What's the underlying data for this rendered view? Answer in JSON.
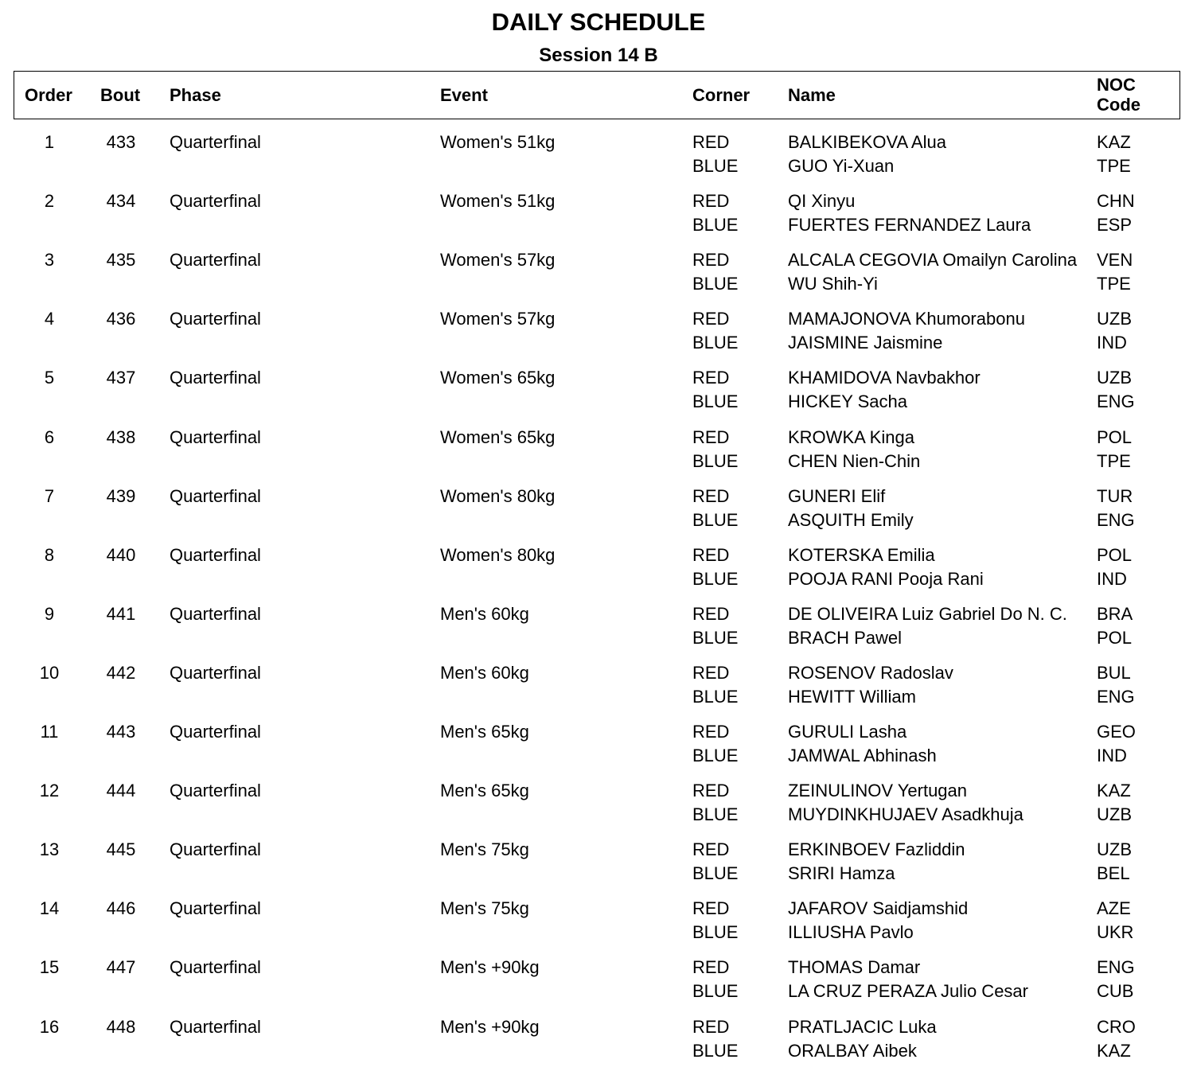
{
  "title": "DAILY SCHEDULE",
  "subtitle": "Session 14 B",
  "headers": {
    "order": "Order",
    "bout": "Bout",
    "phase": "Phase",
    "event": "Event",
    "corner": "Corner",
    "name": "Name",
    "noc_line1": "NOC",
    "noc_line2": "Code"
  },
  "rows": [
    {
      "order": "1",
      "bout": "433",
      "phase": "Quarterfinal",
      "event": "Women's 51kg",
      "red": {
        "corner": "RED",
        "name": "BALKIBEKOVA Alua",
        "noc": "KAZ"
      },
      "blue": {
        "corner": "BLUE",
        "name": "GUO Yi-Xuan",
        "noc": "TPE"
      }
    },
    {
      "order": "2",
      "bout": "434",
      "phase": "Quarterfinal",
      "event": "Women's 51kg",
      "red": {
        "corner": "RED",
        "name": "QI Xinyu",
        "noc": "CHN"
      },
      "blue": {
        "corner": "BLUE",
        "name": "FUERTES FERNANDEZ Laura",
        "noc": "ESP"
      }
    },
    {
      "order": "3",
      "bout": "435",
      "phase": "Quarterfinal",
      "event": "Women's 57kg",
      "red": {
        "corner": "RED",
        "name": "ALCALA CEGOVIA Omailyn Carolina",
        "noc": "VEN"
      },
      "blue": {
        "corner": "BLUE",
        "name": "WU Shih-Yi",
        "noc": "TPE"
      }
    },
    {
      "order": "4",
      "bout": "436",
      "phase": "Quarterfinal",
      "event": "Women's 57kg",
      "red": {
        "corner": "RED",
        "name": "MAMAJONOVA Khumorabonu",
        "noc": "UZB"
      },
      "blue": {
        "corner": "BLUE",
        "name": "JAISMINE Jaismine",
        "noc": "IND"
      }
    },
    {
      "order": "5",
      "bout": "437",
      "phase": "Quarterfinal",
      "event": "Women's 65kg",
      "red": {
        "corner": "RED",
        "name": "KHAMIDOVA Navbakhor",
        "noc": "UZB"
      },
      "blue": {
        "corner": "BLUE",
        "name": "HICKEY Sacha",
        "noc": "ENG"
      }
    },
    {
      "order": "6",
      "bout": "438",
      "phase": "Quarterfinal",
      "event": "Women's 65kg",
      "red": {
        "corner": "RED",
        "name": "KROWKA Kinga",
        "noc": "POL"
      },
      "blue": {
        "corner": "BLUE",
        "name": "CHEN Nien-Chin",
        "noc": "TPE"
      }
    },
    {
      "order": "7",
      "bout": "439",
      "phase": "Quarterfinal",
      "event": "Women's 80kg",
      "red": {
        "corner": "RED",
        "name": "GUNERI Elif",
        "noc": "TUR"
      },
      "blue": {
        "corner": "BLUE",
        "name": "ASQUITH Emily",
        "noc": "ENG"
      }
    },
    {
      "order": "8",
      "bout": "440",
      "phase": "Quarterfinal",
      "event": "Women's 80kg",
      "red": {
        "corner": "RED",
        "name": "KOTERSKA Emilia",
        "noc": "POL"
      },
      "blue": {
        "corner": "BLUE",
        "name": "POOJA RANI Pooja Rani",
        "noc": "IND"
      }
    },
    {
      "order": "9",
      "bout": "441",
      "phase": "Quarterfinal",
      "event": "Men's 60kg",
      "red": {
        "corner": "RED",
        "name": "DE OLIVEIRA Luiz Gabriel Do N. C.",
        "noc": "BRA"
      },
      "blue": {
        "corner": "BLUE",
        "name": "BRACH Pawel",
        "noc": "POL"
      }
    },
    {
      "order": "10",
      "bout": "442",
      "phase": "Quarterfinal",
      "event": "Men's 60kg",
      "red": {
        "corner": "RED",
        "name": "ROSENOV Radoslav",
        "noc": "BUL"
      },
      "blue": {
        "corner": "BLUE",
        "name": "HEWITT William",
        "noc": "ENG"
      }
    },
    {
      "order": "11",
      "bout": "443",
      "phase": "Quarterfinal",
      "event": "Men's 65kg",
      "red": {
        "corner": "RED",
        "name": "GURULI Lasha",
        "noc": "GEO"
      },
      "blue": {
        "corner": "BLUE",
        "name": "JAMWAL Abhinash",
        "noc": "IND"
      }
    },
    {
      "order": "12",
      "bout": "444",
      "phase": "Quarterfinal",
      "event": "Men's 65kg",
      "red": {
        "corner": "RED",
        "name": "ZEINULINOV Yertugan",
        "noc": "KAZ"
      },
      "blue": {
        "corner": "BLUE",
        "name": "MUYDINKHUJAEV Asadkhuja",
        "noc": "UZB"
      }
    },
    {
      "order": "13",
      "bout": "445",
      "phase": "Quarterfinal",
      "event": "Men's 75kg",
      "red": {
        "corner": "RED",
        "name": "ERKINBOEV Fazliddin",
        "noc": "UZB"
      },
      "blue": {
        "corner": "BLUE",
        "name": "SRIRI Hamza",
        "noc": "BEL"
      }
    },
    {
      "order": "14",
      "bout": "446",
      "phase": "Quarterfinal",
      "event": "Men's 75kg",
      "red": {
        "corner": "RED",
        "name": "JAFAROV Saidjamshid",
        "noc": "AZE"
      },
      "blue": {
        "corner": "BLUE",
        "name": "ILLIUSHA Pavlo",
        "noc": "UKR"
      }
    },
    {
      "order": "15",
      "bout": "447",
      "phase": "Quarterfinal",
      "event": "Men's +90kg",
      "red": {
        "corner": "RED",
        "name": "THOMAS Damar",
        "noc": "ENG"
      },
      "blue": {
        "corner": "BLUE",
        "name": "LA CRUZ PERAZA Julio Cesar",
        "noc": "CUB"
      }
    },
    {
      "order": "16",
      "bout": "448",
      "phase": "Quarterfinal",
      "event": "Men's +90kg",
      "red": {
        "corner": "RED",
        "name": "PRATLJACIC Luka",
        "noc": "CRO"
      },
      "blue": {
        "corner": "BLUE",
        "name": "ORALBAY Aibek",
        "noc": "KAZ"
      }
    }
  ]
}
